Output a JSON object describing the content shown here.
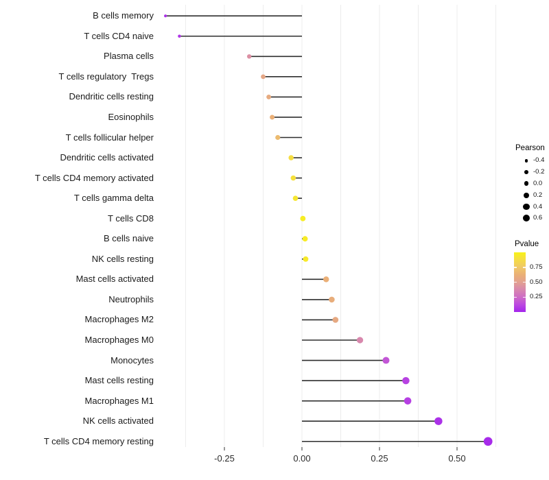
{
  "chart_data": {
    "type": "scatter",
    "variant": "lollipop",
    "title": "",
    "xlabel": "",
    "ylabel": "",
    "xlim": [
      -0.46,
      0.65
    ],
    "grid": "vertical-only",
    "axis_x": {
      "ticks": [
        {
          "value": -0.25,
          "label": "-0.25"
        },
        {
          "value": 0.0,
          "label": "0.00"
        },
        {
          "value": 0.25,
          "label": "0.25"
        },
        {
          "value": 0.5,
          "label": "0.50"
        }
      ],
      "gridline_min": -0.375,
      "gridline_max": 0.625,
      "gridline_step": 0.125
    },
    "points": [
      {
        "label": "B cells memory",
        "pearson": -0.44,
        "pvalue": 0.04
      },
      {
        "label": "T cells CD4 naive",
        "pearson": -0.395,
        "pvalue": 0.06
      },
      {
        "label": "Plasma cells",
        "pearson": -0.17,
        "pvalue": 0.42
      },
      {
        "label": "T cells regulatory  Tregs",
        "pearson": -0.125,
        "pvalue": 0.55
      },
      {
        "label": "Dendritic cells resting",
        "pearson": -0.107,
        "pvalue": 0.58
      },
      {
        "label": "Eosinophils",
        "pearson": -0.096,
        "pvalue": 0.62
      },
      {
        "label": "T cells follicular helper",
        "pearson": -0.078,
        "pvalue": 0.68
      },
      {
        "label": "Dendritic cells activated",
        "pearson": -0.035,
        "pvalue": 0.88
      },
      {
        "label": "T cells CD4 memory activated",
        "pearson": -0.028,
        "pvalue": 0.9
      },
      {
        "label": "T cells gamma delta",
        "pearson": -0.021,
        "pvalue": 0.93
      },
      {
        "label": "T cells CD8",
        "pearson": 0.003,
        "pvalue": 0.97
      },
      {
        "label": "B cells naive",
        "pearson": 0.01,
        "pvalue": 0.96
      },
      {
        "label": "NK cells resting",
        "pearson": 0.012,
        "pvalue": 0.95
      },
      {
        "label": "Mast cells activated",
        "pearson": 0.078,
        "pvalue": 0.62
      },
      {
        "label": "Neutrophils",
        "pearson": 0.096,
        "pvalue": 0.6
      },
      {
        "label": "Macrophages M2",
        "pearson": 0.108,
        "pvalue": 0.57
      },
      {
        "label": "Macrophages M0",
        "pearson": 0.187,
        "pvalue": 0.38
      },
      {
        "label": "Monocytes",
        "pearson": 0.271,
        "pvalue": 0.17
      },
      {
        "label": "Mast cells resting",
        "pearson": 0.335,
        "pvalue": 0.1
      },
      {
        "label": "Macrophages M1",
        "pearson": 0.341,
        "pvalue": 0.095
      },
      {
        "label": "NK cells activated",
        "pearson": 0.44,
        "pvalue": 0.04
      },
      {
        "label": "T cells CD4 memory resting",
        "pearson": 0.6,
        "pvalue": 0.02
      }
    ],
    "legend_size": {
      "title": "Pearson",
      "entries": [
        {
          "label": "-0.4",
          "value": -0.4
        },
        {
          "label": "-0.2",
          "value": -0.2
        },
        {
          "label": "0.0",
          "value": 0.0
        },
        {
          "label": "0.2",
          "value": 0.2
        },
        {
          "label": "0.4",
          "value": 0.4
        },
        {
          "label": "0.6",
          "value": 0.6
        }
      ]
    },
    "legend_color": {
      "title": "Pvalue",
      "ticks": [
        {
          "label": "0.75",
          "value": 0.75
        },
        {
          "label": "0.50",
          "value": 0.5
        },
        {
          "label": "0.25",
          "value": 0.25
        }
      ],
      "gradient_stops": [
        {
          "t": 0.0,
          "color": "#a325ec"
        },
        {
          "t": 0.125,
          "color": "#bc49e0"
        },
        {
          "t": 0.25,
          "color": "#cd6cc5"
        },
        {
          "t": 0.375,
          "color": "#d887ae"
        },
        {
          "t": 0.5,
          "color": "#e2a191"
        },
        {
          "t": 0.625,
          "color": "#eab076"
        },
        {
          "t": 0.75,
          "color": "#efc868"
        },
        {
          "t": 0.875,
          "color": "#f5dc45"
        },
        {
          "t": 1.0,
          "color": "#f8f218"
        }
      ]
    },
    "colors": {
      "stem": "#2d2d2d",
      "gridline": "#ececec",
      "axis_tick": "#333333",
      "axis_text": "#1a1a1a",
      "legend_dot": "#000000",
      "background": "#ffffff"
    }
  }
}
